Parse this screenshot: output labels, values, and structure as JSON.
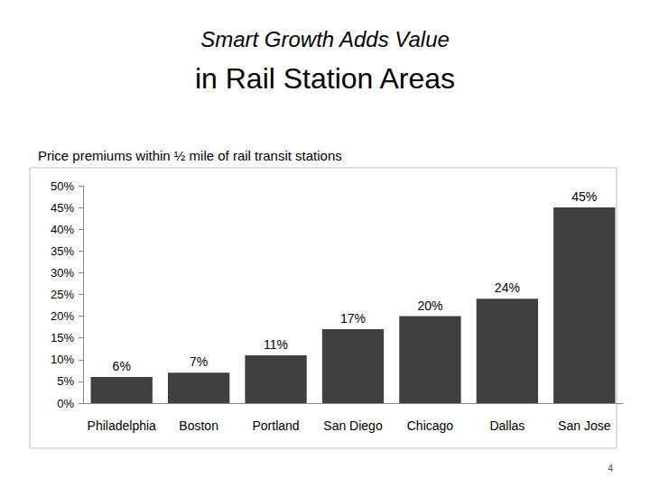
{
  "chart_data": {
    "type": "bar",
    "title": "Smart Growth Adds Value",
    "subtitle": "in Rail Station Areas",
    "annotations": [
      "Price premiums within ½ mile of rail transit stations",
      "4"
    ],
    "categories": [
      "Philadelphia",
      "Boston",
      "Portland",
      "San Diego",
      "Chicago",
      "Dallas",
      "San Jose"
    ],
    "values": [
      6,
      7,
      11,
      17,
      20,
      24,
      45
    ],
    "value_labels": [
      "6%",
      "7%",
      "11%",
      "17%",
      "20%",
      "24%",
      "45%"
    ],
    "color": "#404040",
    "ylim": [
      0,
      50
    ],
    "yticks": [
      {
        "value": 0,
        "label": "0%"
      },
      {
        "value": 5,
        "label": "5%"
      },
      {
        "value": 10,
        "label": "10%"
      },
      {
        "value": 15,
        "label": "15%"
      },
      {
        "value": 20,
        "label": "20%"
      },
      {
        "value": 25,
        "label": "25%"
      },
      {
        "value": 30,
        "label": "30%"
      },
      {
        "value": 35,
        "label": "35%"
      },
      {
        "value": 40,
        "label": "40%"
      },
      {
        "value": 45,
        "label": "45%"
      },
      {
        "value": 50,
        "label": "50%"
      }
    ],
    "grid": false,
    "data_labels": true
  }
}
